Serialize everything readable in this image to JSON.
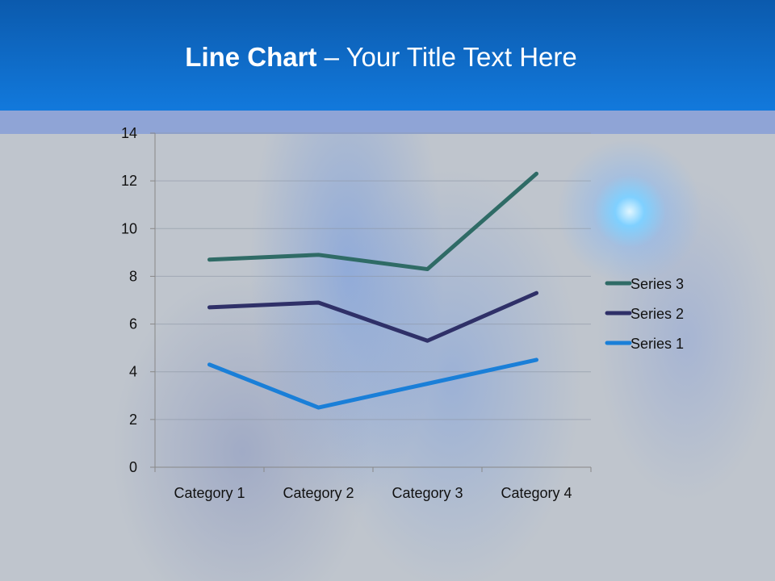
{
  "slide": {
    "title_bold": "Line Chart",
    "title_rest": " – Your Title Text Here"
  },
  "chart_data": {
    "type": "line",
    "stacked": true,
    "title": "",
    "xlabel": "",
    "ylabel": "",
    "categories": [
      "Category 1",
      "Category 2",
      "Category 3",
      "Category 4"
    ],
    "ylim": [
      0,
      14
    ],
    "yticks": [
      "0",
      "2",
      "4",
      "6",
      "8",
      "10",
      "12",
      "14"
    ],
    "grid": true,
    "legend_position": "right",
    "series": [
      {
        "name": "Series 1",
        "values": [
          4.3,
          2.5,
          3.5,
          4.5
        ],
        "color": "#1a7fd8"
      },
      {
        "name": "Series 2",
        "values": [
          2.4,
          4.4,
          1.8,
          2.8
        ],
        "color": "#2f3068"
      },
      {
        "name": "Series 3",
        "values": [
          2,
          2,
          3,
          5
        ],
        "color": "#2f6b66"
      }
    ]
  }
}
